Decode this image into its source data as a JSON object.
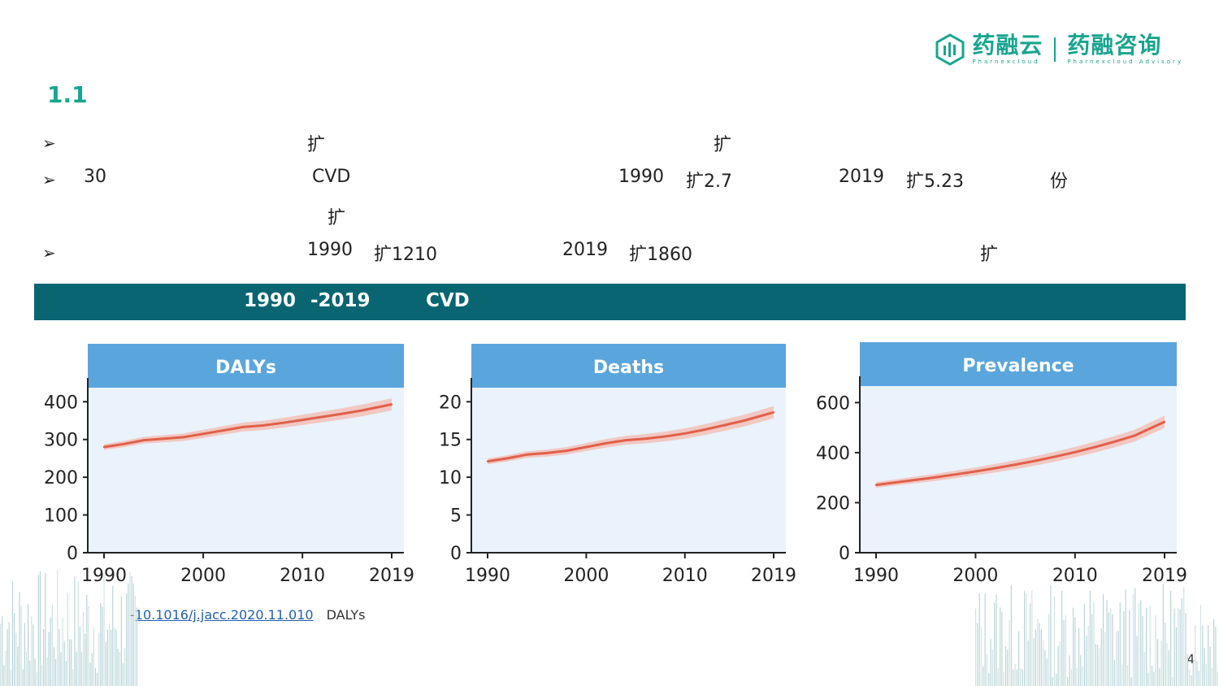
{
  "header": {
    "logo_left": "药融云",
    "logo_left_en": "Pharnexcloud",
    "logo_right": "药融咨询",
    "logo_right_en": "Pharnexcloud Advisory",
    "section_number": "1.1"
  },
  "bullets": {
    "row1": {
      "a": "扩",
      "b": "扩"
    },
    "row2": {
      "a": "30",
      "b": "CVD",
      "c": "1990",
      "d": "扩2.7",
      "e": "2019",
      "f": "扩5.23",
      "g": "份"
    },
    "row3": {
      "a": "扩"
    },
    "row4": {
      "a": "1990",
      "b": "扩1210",
      "c": "2019",
      "d": "扩1860",
      "e": "扩"
    }
  },
  "banner": {
    "year_start": "1990",
    "year_end": "-2019",
    "tag": "CVD"
  },
  "colors": {
    "accent": "#18a58f",
    "banner": "#0a6572",
    "panel_header": "#5aa6dc",
    "plot_bg": "#eaf2fb",
    "line": "#e0604a",
    "band": "#f3b7aa"
  },
  "chart_data": [
    {
      "type": "line",
      "title": "DALYs",
      "x": [
        1990,
        1992,
        1994,
        1996,
        1998,
        2000,
        2002,
        2004,
        2006,
        2008,
        2010,
        2012,
        2014,
        2016,
        2019
      ],
      "series": [
        {
          "values": [
            280,
            288,
            298,
            302,
            306,
            315,
            324,
            333,
            337,
            344,
            352,
            360,
            368,
            377,
            393
          ]
        }
      ],
      "ylim": [
        0,
        420
      ],
      "yticks": [
        0,
        100,
        200,
        300,
        400
      ],
      "xticks": [
        1990,
        2000,
        2010,
        2019
      ],
      "xlim": [
        1988,
        2020
      ]
    },
    {
      "type": "line",
      "title": "Deaths",
      "x": [
        1990,
        1992,
        1994,
        1996,
        1998,
        2000,
        2002,
        2004,
        2006,
        2008,
        2010,
        2012,
        2014,
        2016,
        2019
      ],
      "series": [
        {
          "values": [
            12.1,
            12.5,
            13.0,
            13.2,
            13.5,
            14.0,
            14.5,
            14.9,
            15.1,
            15.4,
            15.8,
            16.3,
            16.9,
            17.5,
            18.6
          ]
        }
      ],
      "ylim": [
        0,
        21
      ],
      "yticks": [
        0,
        5,
        10,
        15,
        20
      ],
      "xticks": [
        1990,
        2000,
        2010,
        2019
      ],
      "xlim": [
        1988,
        2020
      ]
    },
    {
      "type": "line",
      "title": "Prevalence",
      "x": [
        1990,
        1992,
        1994,
        1996,
        1998,
        2000,
        2002,
        2004,
        2006,
        2008,
        2010,
        2012,
        2014,
        2016,
        2019
      ],
      "series": [
        {
          "values": [
            271,
            281,
            291,
            301,
            313,
            325,
            338,
            352,
            367,
            384,
            402,
            422,
            444,
            468,
            523
          ]
        }
      ],
      "ylim": [
        0,
        640
      ],
      "yticks": [
        0,
        200,
        400,
        600
      ],
      "xticks": [
        1990,
        2000,
        2010,
        2019
      ],
      "xlim": [
        1988,
        2020
      ]
    }
  ],
  "footnote": {
    "prefix": "-",
    "doi": "10.1016/j.jacc.2020.11.010",
    "suffix": "DALYs"
  },
  "page_number": "4"
}
